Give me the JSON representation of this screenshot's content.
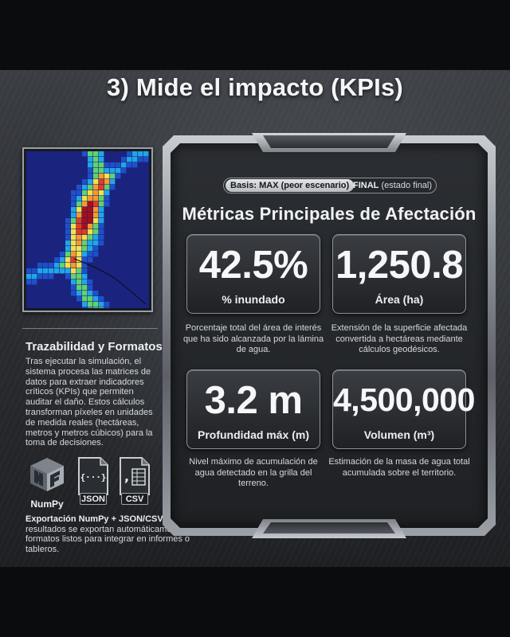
{
  "title": "3) Mide el impacto (KPIs)",
  "left": {
    "heading": "Trazabilidad y Formatos",
    "body": "Tras ejecutar la simulación, el sistema procesa las matrices de datos para extraer indicadores críticos (KPIs) que permiten auditar el daño. Estos cálculos transforman píxeles en unidades de medida reales (hectáreas, metros y metros cúbicos) para la toma de decisiones.",
    "icons": {
      "numpy": "NumPy",
      "json": "JSON",
      "json_glyph": "{···}",
      "csv": "CSV"
    },
    "export_label": "Exportación NumPy + JSON/CSV",
    "export_body": ": Los resultados se exportan automáticamente en formatos listos para integrar en informes o tableros.",
    "heatmap_colors": [
      "#1a237e",
      "#1e50c8",
      "#1fa6e8",
      "#5fd36e",
      "#f2e14a",
      "#f49b2c",
      "#e43a1e",
      "#a80f14"
    ]
  },
  "panel": {
    "basis_label": "Basis: MAX (peor escenario)",
    "final_label": "FINAL",
    "final_note": " (estado final)",
    "heading": "Métricas Principales de Afectación",
    "cards": [
      {
        "value": "42.5%",
        "label": "% inundado",
        "description": "Porcentaje total del área de interés que ha sido alcanzada por la lámina de agua."
      },
      {
        "value": "1,250.8",
        "label": "Área (ha)",
        "description": "Extensión de la superficie afectada convertida a hectáreas mediante cálculos geodésicos."
      },
      {
        "value": "3.2 m",
        "label": "Profundidad máx (m)",
        "description": "Nivel máximo de acumulación de agua detectado en la grilla del terreno."
      },
      {
        "value": "4,500,000",
        "label": "Volumen (m³)",
        "description": "Estimación de la masa de agua total acumulada sobre el territorio."
      }
    ]
  }
}
